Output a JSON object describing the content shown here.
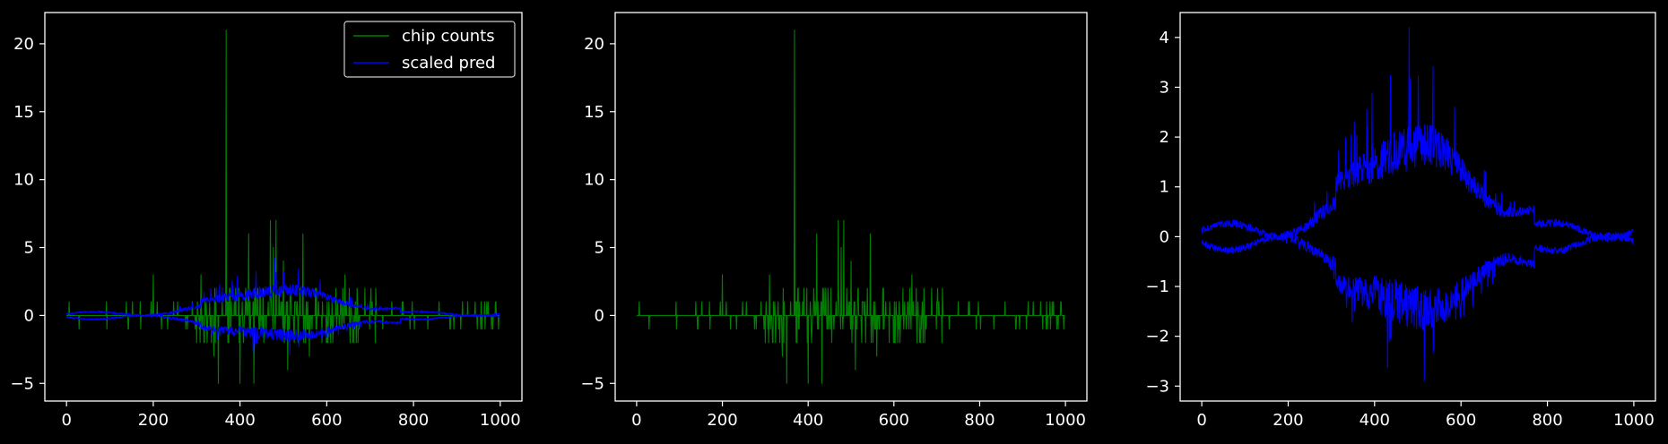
{
  "figure": {
    "background": "#000000",
    "axis_color": "#ffffff",
    "series_colors": {
      "chip_counts": "#008000",
      "scaled_pred": "#0000ff"
    }
  },
  "chart_data": [
    {
      "type": "line",
      "xlim": [
        -50,
        1050
      ],
      "ylim": [
        -6.3,
        22.3
      ],
      "xticks": [
        0,
        200,
        400,
        600,
        800,
        1000
      ],
      "xtick_labels": [
        "0",
        "200",
        "400",
        "600",
        "800",
        "1000"
      ],
      "yticks": [
        -5,
        0,
        5,
        10,
        15,
        20
      ],
      "ytick_labels": [
        "−5",
        "0",
        "5",
        "10",
        "15",
        "20"
      ],
      "grid": false,
      "legend": {
        "placement": "upper right",
        "entries": [
          "chip counts",
          "scaled pred"
        ]
      },
      "series": [
        {
          "name": "chip counts",
          "color": "#008000",
          "x_range": [
            0,
            999
          ],
          "baseline": 0,
          "spikes": [
            {
              "x": 368,
              "y": 21
            },
            {
              "x": 350,
              "y": -5
            },
            {
              "x": 400,
              "y": -5
            },
            {
              "x": 432,
              "y": -5
            },
            {
              "x": 420,
              "y": 6
            },
            {
              "x": 470,
              "y": 7
            },
            {
              "x": 483,
              "y": 7
            },
            {
              "x": 477,
              "y": 5
            },
            {
              "x": 500,
              "y": 4
            },
            {
              "x": 545,
              "y": 6
            },
            {
              "x": 510,
              "y": -4
            },
            {
              "x": 560,
              "y": -3
            },
            {
              "x": 600,
              "y": -2
            },
            {
              "x": 200,
              "y": 3
            },
            {
              "x": 310,
              "y": 3
            },
            {
              "x": 642,
              "y": 3
            },
            {
              "x": 340,
              "y": -3
            }
          ],
          "noise_region": [
            300,
            720
          ],
          "noise_amplitude": 2,
          "outer_amplitude": 1
        },
        {
          "name": "scaled pred",
          "color": "#0000ff",
          "x_range": [
            0,
            999
          ],
          "bands": "upper and lower envelopes about zero",
          "peak_x": 480,
          "upper_peak": 4.2,
          "lower_trough": -2.9
        }
      ]
    },
    {
      "type": "line",
      "xlim": [
        -50,
        1050
      ],
      "ylim": [
        -6.3,
        22.3
      ],
      "xticks": [
        0,
        200,
        400,
        600,
        800,
        1000
      ],
      "xtick_labels": [
        "0",
        "200",
        "400",
        "600",
        "800",
        "1000"
      ],
      "yticks": [
        -5,
        0,
        5,
        10,
        15,
        20
      ],
      "ytick_labels": [
        "−5",
        "0",
        "5",
        "10",
        "15",
        "20"
      ],
      "grid": false,
      "series": [
        {
          "color": "#008000",
          "x_range": [
            0,
            999
          ],
          "baseline": 0,
          "spikes": [
            {
              "x": 368,
              "y": 21
            },
            {
              "x": 350,
              "y": -5
            },
            {
              "x": 400,
              "y": -5
            },
            {
              "x": 432,
              "y": -5
            },
            {
              "x": 420,
              "y": 6
            },
            {
              "x": 470,
              "y": 7
            },
            {
              "x": 483,
              "y": 7
            },
            {
              "x": 477,
              "y": 5
            },
            {
              "x": 500,
              "y": 4
            },
            {
              "x": 545,
              "y": 6
            },
            {
              "x": 510,
              "y": -4
            },
            {
              "x": 560,
              "y": -3
            },
            {
              "x": 600,
              "y": -2
            },
            {
              "x": 200,
              "y": 3
            },
            {
              "x": 310,
              "y": 3
            },
            {
              "x": 642,
              "y": 3
            },
            {
              "x": 340,
              "y": -3
            }
          ],
          "noise_region": [
            300,
            720
          ],
          "noise_amplitude": 2,
          "outer_amplitude": 1
        }
      ]
    },
    {
      "type": "line",
      "xlim": [
        -50,
        1050
      ],
      "ylim": [
        -3.3,
        4.5
      ],
      "xticks": [
        0,
        200,
        400,
        600,
        800,
        1000
      ],
      "xtick_labels": [
        "0",
        "200",
        "400",
        "600",
        "800",
        "1000"
      ],
      "yticks": [
        -3,
        -2,
        -1,
        0,
        1,
        2,
        3,
        4
      ],
      "ytick_labels": [
        "−3",
        "−2",
        "−1",
        "0",
        "1",
        "2",
        "3",
        "4"
      ],
      "grid": false,
      "series": [
        {
          "color": "#0000ff",
          "x_range": [
            0,
            999
          ],
          "bands": "upper and lower envelopes about zero",
          "peak_x": 480,
          "upper_peak": 4.2,
          "lower_trough": -2.9,
          "start_values": {
            "upper": 0.1,
            "lower": -0.3
          },
          "end_values": {
            "upper": 0.2,
            "lower": -0.25
          }
        }
      ]
    }
  ]
}
